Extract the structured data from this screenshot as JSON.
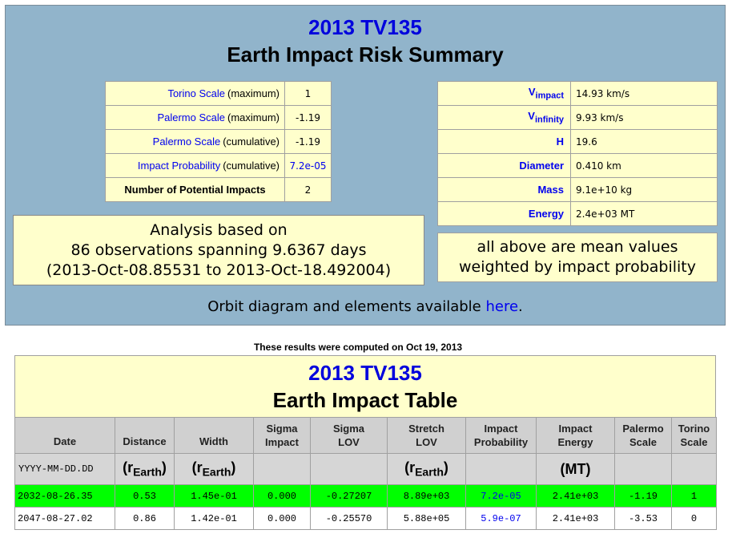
{
  "summary": {
    "object": "2013 TV135",
    "title": "Earth Impact Risk Summary",
    "risk_rows": [
      {
        "label": "Torino Scale",
        "qualifier": "(maximum)",
        "value": "1"
      },
      {
        "label": "Palermo Scale",
        "qualifier": "(maximum)",
        "value": "-1.19"
      },
      {
        "label": "Palermo Scale",
        "qualifier": "(cumulative)",
        "value": "-1.19"
      },
      {
        "label": "Impact Probability",
        "qualifier": "(cumulative)",
        "value": "7.2e-05",
        "value_link": true
      },
      {
        "label": "Number of Potential Impacts",
        "value": "2"
      }
    ],
    "physical_rows": [
      {
        "label": "V",
        "subscript": "impact",
        "value": "14.93 km/s"
      },
      {
        "label": "V",
        "subscript": "infinity",
        "value": "9.93 km/s"
      },
      {
        "label": "H",
        "value": "19.6"
      },
      {
        "label": "Diameter",
        "value": "0.410 km"
      },
      {
        "label": "Mass",
        "value": "9.1e+10 kg"
      },
      {
        "label": "Energy",
        "value": "2.4e+03 MT"
      }
    ],
    "note": [
      "all above are mean values",
      "weighted by impact probability"
    ],
    "analysis": [
      "Analysis based on",
      "86 observations spanning 9.6367 days",
      "(2013-Oct-08.85531 to 2013-Oct-18.492004)"
    ],
    "orbit": {
      "text": "Orbit diagram and elements available ",
      "link": "here",
      "end": "."
    }
  },
  "computed": "These results were computed on Oct 19, 2013",
  "table": {
    "object": "2013 TV135",
    "title": "Earth Impact Table",
    "columns": [
      [
        "Date"
      ],
      [
        "Distance"
      ],
      [
        "Width"
      ],
      [
        "Sigma",
        "Impact"
      ],
      [
        "Sigma",
        "LOV"
      ],
      [
        "Stretch",
        "LOV"
      ],
      [
        "Impact",
        "Probability"
      ],
      [
        "Impact",
        "Energy"
      ],
      [
        "Palermo",
        "Scale"
      ],
      [
        "Torino",
        "Scale"
      ]
    ],
    "units": [
      "YYYY-MM-DD.DD",
      {
        "main": "(r",
        "sub": "Earth",
        "tail": ")"
      },
      {
        "main": "(r",
        "sub": "Earth",
        "tail": ")"
      },
      null,
      null,
      {
        "main": "(r",
        "sub": "Earth",
        "tail": ")"
      },
      null,
      "(MT)",
      null,
      null
    ],
    "rows": [
      {
        "highlight": true,
        "cells": [
          "2032-08-26.35",
          "0.53",
          "1.45e-01",
          "0.000",
          "-0.27207",
          "8.89e+03",
          "7.2e-05",
          "2.41e+03",
          "-1.19",
          "1"
        ]
      },
      {
        "highlight": false,
        "cells": [
          "2047-08-27.02",
          "0.86",
          "1.42e-01",
          "0.000",
          "-0.25570",
          "5.88e+05",
          "5.9e-07",
          "2.41e+03",
          "-3.53",
          "0"
        ]
      }
    ]
  }
}
